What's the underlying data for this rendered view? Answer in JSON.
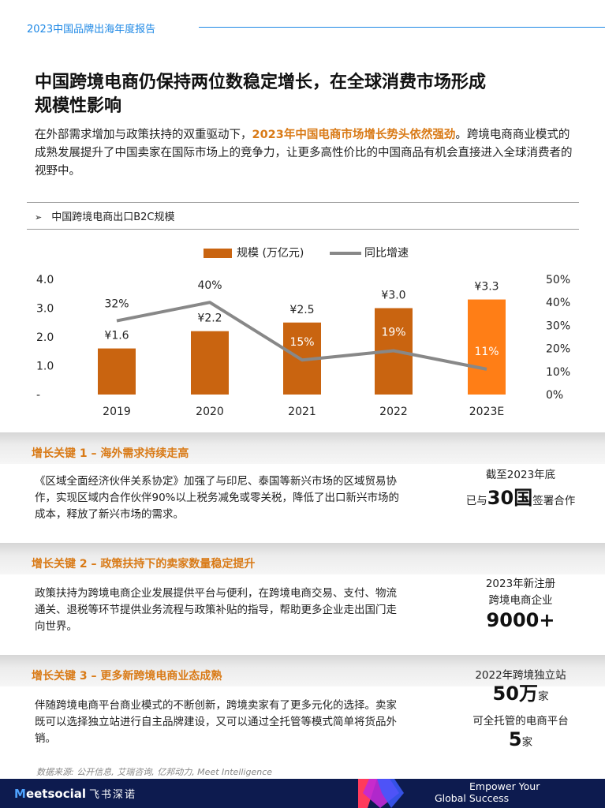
{
  "header": {
    "report_label": "2023中国品牌出海年度报告"
  },
  "headline": {
    "line1": "中国跨境电商仍保持两位数稳定增长，在全球消费市场形成",
    "line2": "规模性影响"
  },
  "intro": {
    "part1": "在外部需求增加与政策扶持的双重驱动下，",
    "highlight": "2023年中国电商市场增长势头依然强劲",
    "part2": "。跨境电商商业模式的成熟发展提升了中国卖家在国际市场上的竞争力，让更多高性价比的中国商品有机会直接进入全球消费者的视野中。"
  },
  "chart_title": {
    "arrow": "➢",
    "text": "中国跨境电商出口B2C规模"
  },
  "chart_data": {
    "type": "bar+line",
    "categories": [
      "2019",
      "2020",
      "2021",
      "2022",
      "2023E"
    ],
    "series": [
      {
        "name": "规模 (万亿元)",
        "type": "bar",
        "values": [
          1.6,
          2.2,
          2.5,
          3.0,
          3.3
        ],
        "labels": [
          "¥1.6",
          "¥2.2",
          "¥2.5",
          "¥3.0",
          "¥3.3"
        ]
      },
      {
        "name": "同比增速",
        "type": "line",
        "values": [
          32,
          40,
          15,
          19,
          11
        ],
        "labels": [
          "32%",
          "40%",
          "15%",
          "19%",
          "11%"
        ]
      }
    ],
    "y_left": {
      "ticks": [
        "-",
        "1.0",
        "2.0",
        "3.0",
        "4.0"
      ],
      "range": [
        0,
        4.0
      ]
    },
    "y_right": {
      "ticks": [
        "0%",
        "10%",
        "20%",
        "30%",
        "40%",
        "50%"
      ],
      "range": [
        0,
        50
      ]
    },
    "legend_placement": "top-center",
    "colors": {
      "bar": "#c96410",
      "bar_highlight": "#ff7e16",
      "line": "#888888"
    }
  },
  "sections": [
    {
      "title": "增长关键 1 – 海外需求持续走高",
      "body": "《区域全面经济伙伴关系协定》加强了与印尼、泰国等新兴市场的区域贸易协作，实现区域内合作伙伴90%以上税务减免或零关税，降低了出口新兴市场的成本，释放了新兴市场的需求。",
      "stat": {
        "line1": "截至2023年底",
        "pre": "已与",
        "big": "30国",
        "post": "签署合作"
      }
    },
    {
      "title": "增长关键 2 – 政策扶持下的卖家数量稳定提升",
      "body": "政策扶持为跨境电商企业发展提供平台与便利，在跨境电商交易、支付、物流通关、退税等环节提供业务流程与政策补贴的指导，帮助更多企业走出国门走向世界。",
      "stat": {
        "line1": "2023年新注册",
        "line2": "跨境电商企业",
        "big": "9000+"
      }
    },
    {
      "title": "增长关键 3 – 更多新跨境电商业态成熟",
      "body": "伴随跨境电商平台商业模式的不断创新，跨境卖家有了更多元化的选择。卖家既可以选择独立站进行自主品牌建设，又可以通过全托管等模式简单将货品外销。",
      "stat": {
        "line1": "2022年跨境独立站",
        "big1": "50万",
        "unit1": "家",
        "line2": "可全托管的电商平台",
        "big2": "5",
        "unit2": "家"
      }
    }
  ],
  "source": "数据来源: 公开信息, 艾瑞咨询, 亿邦动力, Meet Intelligence",
  "footer": {
    "brand_m": "M",
    "brand_rest": "eetsocial",
    "brand_cn": "飞书深诺",
    "slogan_line1": "Empower Your",
    "slogan_line2": "Global Success"
  }
}
